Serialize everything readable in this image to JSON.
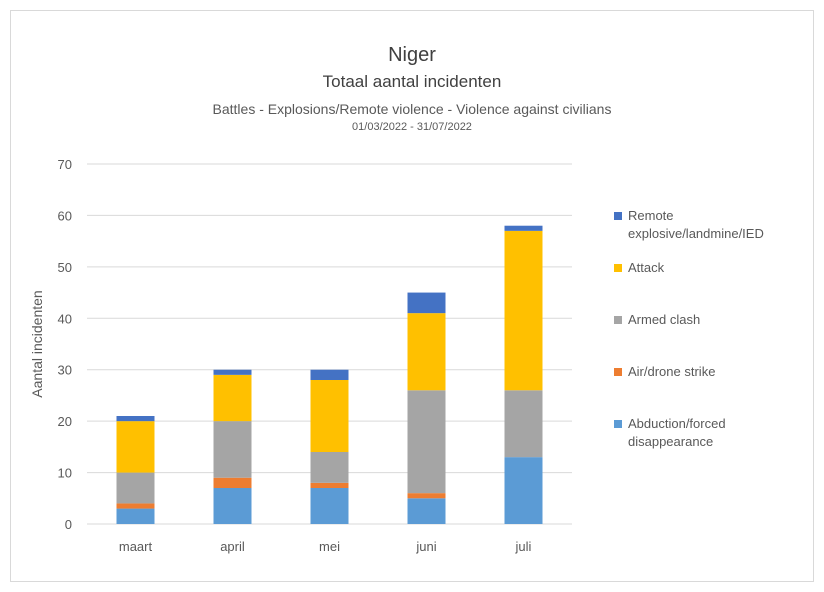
{
  "chart_data": {
    "type": "bar",
    "stacked": true,
    "title": "Niger",
    "subtitle": "Totaal aantal incidenten",
    "subtitle2": "Battles - Explosions/Remote violence - Violence against civilians",
    "date_range": "01/03/2022 - 31/07/2022",
    "xlabel": "",
    "ylabel": "Aantal incidenten",
    "ylim": [
      0,
      70
    ],
    "yticks": [
      0,
      10,
      20,
      30,
      40,
      50,
      60,
      70
    ],
    "grid": true,
    "legend_position": "right",
    "categories": [
      "maart",
      "april",
      "mei",
      "juni",
      "juli"
    ],
    "series": [
      {
        "name": "Abduction/forced disappearance",
        "legend_lines": [
          "Abduction/forced",
          "disappearance"
        ],
        "color": "#5b9bd5",
        "values": [
          3,
          7,
          7,
          5,
          13
        ]
      },
      {
        "name": "Air/drone strike",
        "legend_lines": [
          "Air/drone strike"
        ],
        "color": "#ed7d31",
        "values": [
          1,
          2,
          1,
          1,
          0
        ]
      },
      {
        "name": "Armed clash",
        "legend_lines": [
          "Armed clash"
        ],
        "color": "#a5a5a5",
        "values": [
          6,
          11,
          6,
          20,
          13
        ]
      },
      {
        "name": "Attack",
        "legend_lines": [
          "Attack"
        ],
        "color": "#ffc000",
        "values": [
          10,
          9,
          14,
          15,
          31
        ]
      },
      {
        "name": "Remote explosive/landmine/IED",
        "legend_lines": [
          "Remote",
          "explosive/landmine/IED"
        ],
        "color": "#4472c4",
        "values": [
          1,
          1,
          2,
          4,
          1
        ]
      }
    ]
  }
}
